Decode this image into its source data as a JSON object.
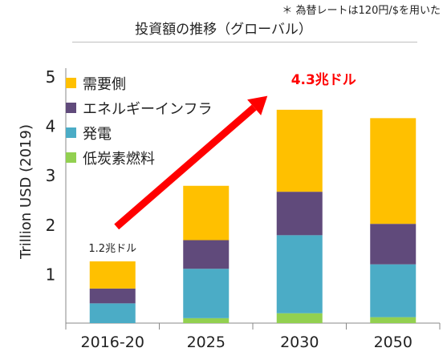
{
  "note": "＊ 為替レートは120円/$を用いた",
  "chart_data": {
    "type": "bar",
    "stacked": true,
    "title": "投資額の推移（グローバル）",
    "ylabel": "Trillion USD (2019)",
    "xlabel": "",
    "ylim": [
      0,
      5
    ],
    "yticks": [
      1,
      2,
      3,
      4,
      5
    ],
    "grid": false,
    "legend_position": "top-left",
    "categories": [
      "2016-20",
      "2025",
      "2030",
      "2050"
    ],
    "series": [
      {
        "name": "低炭素燃料",
        "color": "#92d050",
        "values": [
          0.0,
          0.1,
          0.2,
          0.12
        ]
      },
      {
        "name": "発電",
        "color": "#4bacc6",
        "values": [
          0.4,
          1.0,
          1.58,
          1.07
        ]
      },
      {
        "name": "エネルギーインフラ",
        "color": "#604a7b",
        "values": [
          0.3,
          0.58,
          0.88,
          0.82
        ]
      },
      {
        "name": "需要側",
        "color": "#ffc000",
        "values": [
          0.55,
          1.1,
          1.66,
          2.14
        ]
      }
    ],
    "annotations": [
      {
        "text": "1.2兆ドル",
        "category": "2016-20",
        "color": "#222222"
      },
      {
        "text": "4.3兆ドル",
        "category": "2030",
        "color": "#ff0000"
      }
    ],
    "arrow": {
      "from": {
        "category": "2016-20",
        "value": 1.95
      },
      "to": {
        "category": "2030",
        "value": 4.6
      },
      "color": "#ff0000"
    }
  }
}
